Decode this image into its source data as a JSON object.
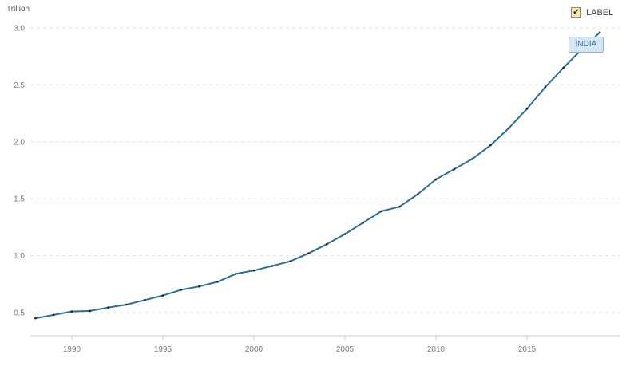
{
  "legend": {
    "label": "LABEL",
    "checked": true,
    "check_glyph": "✔"
  },
  "chart_data": {
    "type": "line",
    "unit_label": "Trillion",
    "series_tag": "INDIA",
    "ylim": [
      0.4,
      3.0
    ],
    "y_ticks": [
      "0.5",
      "1.0",
      "1.5",
      "2.0",
      "2.5",
      "3.0"
    ],
    "xlim": [
      1988,
      2019
    ],
    "x_ticks": [
      "1990",
      "1995",
      "2000",
      "2005",
      "2010",
      "2015"
    ],
    "grid": true,
    "line_color": "#2b6f9e",
    "series": [
      {
        "name": "INDIA",
        "x": [
          1988,
          1989,
          1990,
          1991,
          1992,
          1993,
          1994,
          1995,
          1996,
          1997,
          1998,
          1999,
          2000,
          2001,
          2002,
          2003,
          2004,
          2005,
          2006,
          2007,
          2008,
          2009,
          2010,
          2011,
          2012,
          2013,
          2014,
          2015,
          2016,
          2017,
          2018,
          2019
        ],
        "values": [
          0.45,
          0.48,
          0.51,
          0.515,
          0.545,
          0.57,
          0.61,
          0.65,
          0.7,
          0.73,
          0.77,
          0.84,
          0.87,
          0.91,
          0.95,
          1.02,
          1.1,
          1.19,
          1.29,
          1.39,
          1.43,
          1.54,
          1.67,
          1.76,
          1.85,
          1.97,
          2.12,
          2.29,
          2.48,
          2.65,
          2.81,
          2.96
        ]
      }
    ]
  }
}
